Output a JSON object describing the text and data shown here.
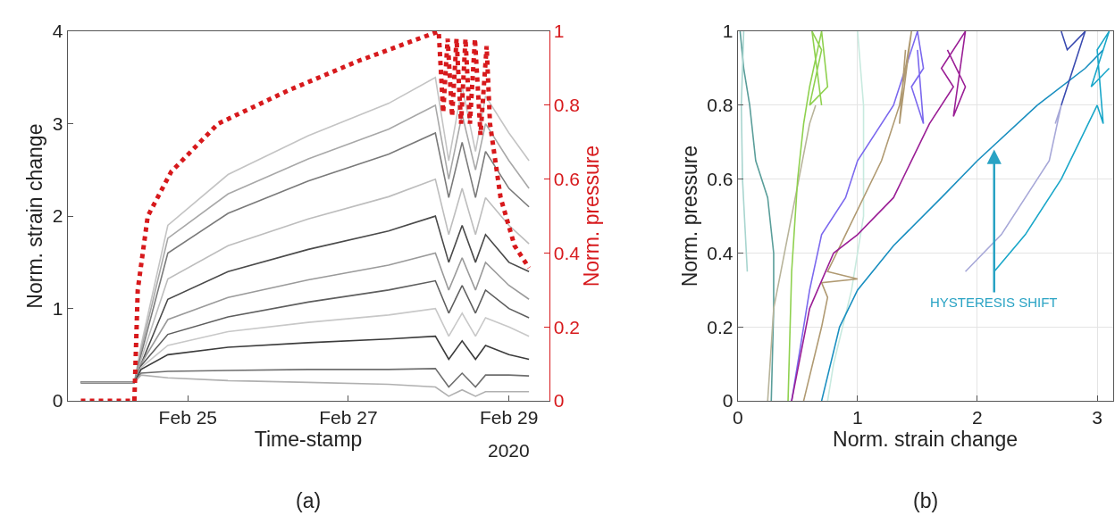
{
  "chart_data": [
    {
      "type": "line",
      "title": "(a)",
      "xlabel": "Time-stamp",
      "ylabel": "Norm. strain change",
      "y2label": "Norm. pressure",
      "x": [
        "2020-02-23T16:00",
        "2020-02-24T08:00",
        "2020-02-24T10:00",
        "2020-02-24T18:00",
        "2020-02-25T12:00",
        "2020-02-26T12:00",
        "2020-02-27T12:00",
        "2020-02-28T02:00",
        "2020-02-28T06:00",
        "2020-02-28T10:00",
        "2020-02-28T14:00",
        "2020-02-28T17:00",
        "2020-02-29T00:00",
        "2020-02-29T06:00"
      ],
      "xlim": [
        "2020-02-23T12:00",
        "2020-02-29T12:00"
      ],
      "xticks": [
        {
          "value": "2020-02-25",
          "label": "Feb 25"
        },
        {
          "value": "2020-02-27",
          "label": "Feb 27"
        },
        {
          "value": "2020-02-29",
          "label": "Feb 29"
        }
      ],
      "ylim": [
        0,
        4
      ],
      "yticks": [
        0,
        1,
        2,
        3,
        4
      ],
      "y2lim": [
        0,
        1
      ],
      "y2ticks": [
        0,
        0.2,
        0.4,
        0.6,
        0.8,
        1
      ],
      "annotations": [
        "2020"
      ],
      "series": [
        {
          "color": "#c4c4c4",
          "values": [
            0.2,
            0.2,
            0.6,
            1.9,
            2.45,
            2.87,
            3.22,
            3.5,
            2.6,
            3.4,
            2.7,
            3.3,
            2.9,
            2.6
          ]
        },
        {
          "color": "#a8a8a8",
          "values": [
            0.2,
            0.2,
            0.55,
            1.76,
            2.24,
            2.62,
            2.94,
            3.2,
            2.4,
            3.1,
            2.5,
            3.0,
            2.6,
            2.3
          ]
        },
        {
          "color": "#7a7a7a",
          "values": [
            0.2,
            0.2,
            0.5,
            1.6,
            2.03,
            2.38,
            2.67,
            2.9,
            2.2,
            2.8,
            2.2,
            2.7,
            2.3,
            2.1
          ]
        },
        {
          "color": "#bdbdbd",
          "values": [
            0.2,
            0.2,
            0.45,
            1.32,
            1.68,
            1.97,
            2.21,
            2.4,
            1.8,
            2.3,
            1.8,
            2.2,
            1.9,
            1.7
          ]
        },
        {
          "color": "#4a4a4a",
          "values": [
            0.2,
            0.2,
            0.4,
            1.1,
            1.4,
            1.64,
            1.84,
            2.0,
            1.5,
            1.9,
            1.5,
            1.8,
            1.5,
            1.4
          ]
        },
        {
          "color": "#9a9a9a",
          "values": [
            0.2,
            0.2,
            0.4,
            0.88,
            1.12,
            1.31,
            1.47,
            1.6,
            1.2,
            1.55,
            1.2,
            1.5,
            1.25,
            1.1
          ]
        },
        {
          "color": "#5e5e5e",
          "values": [
            0.2,
            0.2,
            0.38,
            0.72,
            0.91,
            1.07,
            1.2,
            1.3,
            0.95,
            1.25,
            0.95,
            1.2,
            1.0,
            0.9
          ]
        },
        {
          "color": "#c8c8c8",
          "values": [
            0.2,
            0.2,
            0.36,
            0.6,
            0.75,
            0.85,
            0.93,
            1.0,
            0.7,
            0.95,
            0.7,
            0.9,
            0.8,
            0.7
          ]
        },
        {
          "color": "#3c3c3c",
          "values": [
            0.2,
            0.2,
            0.34,
            0.5,
            0.58,
            0.63,
            0.67,
            0.7,
            0.45,
            0.65,
            0.45,
            0.6,
            0.5,
            0.45
          ]
        },
        {
          "color": "#6e6e6e",
          "values": [
            0.2,
            0.2,
            0.3,
            0.32,
            0.33,
            0.34,
            0.34,
            0.35,
            0.15,
            0.3,
            0.15,
            0.28,
            0.28,
            0.27
          ]
        },
        {
          "color": "#b0b0b0",
          "values": [
            0.2,
            0.2,
            0.28,
            0.25,
            0.22,
            0.2,
            0.18,
            0.15,
            0.05,
            0.12,
            0.05,
            0.1,
            0.1,
            0.1
          ]
        },
        {
          "color": "#d7191c",
          "axis": "y2",
          "line_style": "dotted",
          "x": [
            "2020-02-23T16:00",
            "2020-02-24T08:00",
            "2020-02-24T09:00",
            "2020-02-24T12:00",
            "2020-02-24T19:00",
            "2020-02-25T09:00",
            "2020-02-26T06:00",
            "2020-02-27T03:00",
            "2020-02-28T03:00",
            "2020-02-28T04:20",
            "2020-02-28T05:40",
            "2020-02-28T07:00",
            "2020-02-28T08:20",
            "2020-02-28T09:40",
            "2020-02-28T11:00",
            "2020-02-28T12:20",
            "2020-02-28T13:50",
            "2020-02-28T15:30",
            "2020-02-28T17:20",
            "2020-02-28T18:20",
            "2020-02-28T21:30",
            "2020-02-29T01:40",
            "2020-02-29T06:00"
          ],
          "values": [
            0,
            0,
            0.3,
            0.5,
            0.62,
            0.75,
            0.84,
            0.92,
            1.0,
            0.78,
            0.98,
            0.77,
            0.98,
            0.75,
            0.98,
            0.75,
            0.98,
            0.72,
            0.96,
            0.75,
            0.55,
            0.42,
            0.36
          ]
        }
      ]
    },
    {
      "type": "line",
      "title": "(b)",
      "xlabel": "Norm. strain change",
      "ylabel": "Norm. pressure",
      "xlim": [
        0,
        3.13
      ],
      "xticks": [
        0,
        1,
        2,
        3
      ],
      "ylim": [
        0,
        1
      ],
      "yticks": [
        0,
        0.2,
        0.4,
        0.6,
        0.8,
        1
      ],
      "grid": true,
      "annotations": [
        {
          "text": "HYSTERESIS SHIFT",
          "x": 2.14,
          "y": 0.68
        }
      ],
      "series": [
        {
          "color": "#5a9e9a",
          "x": [
            0.02,
            0.05,
            0.1,
            0.15,
            0.25,
            0.3,
            0.3,
            0.28
          ],
          "values": [
            1,
            0.9,
            0.8,
            0.65,
            0.55,
            0.4,
            0.25,
            0
          ]
        },
        {
          "color": "#a8d5cf",
          "x": [
            0.05,
            0.03,
            0.04,
            0.08
          ],
          "values": [
            1,
            0.8,
            0.6,
            0.35
          ]
        },
        {
          "color": "#b8b49a",
          "x": [
            0.25,
            0.3,
            0.45,
            0.6,
            0.65
          ],
          "values": [
            0,
            0.25,
            0.5,
            0.75,
            0.8
          ]
        },
        {
          "color": "#8fd14f",
          "x": [
            0.42,
            0.45,
            0.5,
            0.55,
            0.6,
            0.7,
            0.75,
            0.6,
            0.7,
            0.62,
            0.7
          ],
          "values": [
            0,
            0.35,
            0.6,
            0.75,
            0.85,
            1,
            0.85,
            0.8,
            0.95,
            1,
            0.8
          ]
        },
        {
          "color": "#c8eadf",
          "x": [
            1.0,
            1.05,
            1.05,
            0.95,
            0.8,
            0.75
          ],
          "values": [
            1,
            0.8,
            0.5,
            0.3,
            0.1,
            0
          ]
        },
        {
          "color": "#7b68ee",
          "x": [
            0.45,
            0.6,
            0.7,
            0.9,
            1.0,
            1.3,
            1.5,
            1.55,
            1.45,
            1.55,
            1.5
          ],
          "values": [
            0,
            0.3,
            0.45,
            0.55,
            0.65,
            0.8,
            1,
            0.9,
            0.85,
            0.75,
            0.95
          ]
        },
        {
          "color": "#b09a72",
          "x": [
            0.55,
            0.7,
            0.75,
            0.7,
            1.0,
            0.75,
            0.9,
            1.2,
            1.35,
            1.45,
            1.35,
            1.4
          ],
          "values": [
            0,
            0.2,
            0.28,
            0.32,
            0.33,
            0.35,
            0.45,
            0.65,
            0.8,
            1,
            0.75,
            0.95
          ]
        },
        {
          "color": "#9b1f96",
          "x": [
            0.45,
            0.6,
            0.8,
            1.0,
            1.3,
            1.6,
            1.8,
            1.7,
            1.9,
            1.8,
            1.9,
            1.75
          ],
          "values": [
            0,
            0.25,
            0.4,
            0.45,
            0.55,
            0.75,
            0.85,
            0.9,
            1,
            0.77,
            0.85,
            0.95
          ]
        },
        {
          "color": "#1a8fc0",
          "x": [
            0.7,
            0.85,
            1.0,
            1.3,
            1.7,
            2.0,
            2.5,
            2.9,
            3.05
          ],
          "values": [
            0,
            0.2,
            0.3,
            0.42,
            0.55,
            0.65,
            0.8,
            0.9,
            0.95
          ]
        },
        {
          "color": "#3a4bb0",
          "x": [
            2.7,
            2.8,
            2.9,
            2.75,
            2.7
          ],
          "values": [
            0.8,
            0.9,
            1,
            0.95,
            1
          ]
        },
        {
          "color": "#a7a8d8",
          "x": [
            1.9,
            2.2,
            2.4,
            2.6,
            2.7,
            2.65
          ],
          "values": [
            0.35,
            0.45,
            0.55,
            0.65,
            0.8,
            0.75
          ]
        },
        {
          "color": "#1aa7c9",
          "x": [
            2.14,
            2.4,
            2.7,
            2.85,
            3.0,
            3.05,
            3.0,
            3.1,
            2.95,
            3.1
          ],
          "values": [
            0.35,
            0.45,
            0.6,
            0.7,
            0.8,
            0.75,
            0.95,
            1,
            0.85,
            0.9
          ]
        }
      ]
    }
  ]
}
